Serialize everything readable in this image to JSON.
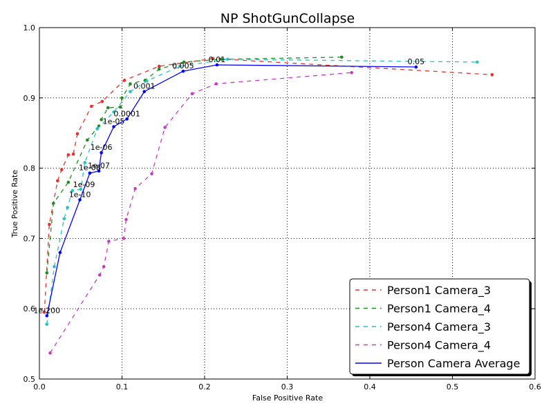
{
  "chart_data": {
    "type": "line",
    "title": "NP ShotGunCollapse",
    "xlabel": "False Positive Rate",
    "ylabel": "True Positive Rate",
    "xlim": [
      0.0,
      0.6
    ],
    "ylim": [
      0.5,
      1.0
    ],
    "x_ticks": [
      0.0,
      0.1,
      0.2,
      0.3,
      0.4,
      0.5,
      0.6
    ],
    "y_ticks": [
      0.5,
      0.6,
      0.7,
      0.8,
      0.9,
      1.0
    ],
    "x_tick_labels": [
      "0.0",
      "0.1",
      "0.2",
      "0.3",
      "0.4",
      "0.5",
      "0.6"
    ],
    "y_tick_labels": [
      "0.5",
      "0.6",
      "0.7",
      "0.8",
      "0.9",
      "1.0"
    ],
    "grid": true,
    "legend_position": "bottom-right",
    "series": [
      {
        "name": "Person1 Camera_3",
        "color": "#e8302b",
        "style": "dashed",
        "x": [
          0.006,
          0.012,
          0.022,
          0.027,
          0.035,
          0.041,
          0.046,
          0.063,
          0.076,
          0.103,
          0.145,
          0.21,
          0.548
        ],
        "y": [
          0.595,
          0.72,
          0.782,
          0.798,
          0.819,
          0.82,
          0.849,
          0.888,
          0.895,
          0.925,
          0.945,
          0.956,
          0.933
        ]
      },
      {
        "name": "Person1 Camera_4",
        "color": "#1e8c1e",
        "style": "dashed",
        "x": [
          0.009,
          0.017,
          0.035,
          0.058,
          0.072,
          0.075,
          0.083,
          0.098,
          0.1,
          0.11,
          0.128,
          0.145,
          0.175,
          0.22,
          0.366
        ],
        "y": [
          0.651,
          0.75,
          0.78,
          0.84,
          0.86,
          0.869,
          0.886,
          0.887,
          0.9,
          0.92,
          0.925,
          0.941,
          0.951,
          0.955,
          0.958
        ]
      },
      {
        "name": "Person4 Camera_3",
        "color": "#22c3c3",
        "style": "dashed",
        "x": [
          0.009,
          0.018,
          0.03,
          0.034,
          0.04,
          0.05,
          0.055,
          0.07,
          0.09,
          0.11,
          0.13,
          0.17,
          0.228,
          0.53
        ],
        "y": [
          0.578,
          0.66,
          0.728,
          0.744,
          0.768,
          0.77,
          0.808,
          0.856,
          0.88,
          0.909,
          0.924,
          0.945,
          0.955,
          0.951
        ]
      },
      {
        "name": "Person4 Camera_4",
        "color": "#c43cc4",
        "style": "dashed",
        "x": [
          0.013,
          0.073,
          0.078,
          0.084,
          0.102,
          0.105,
          0.116,
          0.136,
          0.152,
          0.185,
          0.214,
          0.378
        ],
        "y": [
          0.537,
          0.648,
          0.66,
          0.696,
          0.7,
          0.727,
          0.771,
          0.792,
          0.858,
          0.906,
          0.92,
          0.936
        ]
      },
      {
        "name": "Person Camera Average",
        "color": "#0000ff",
        "style": "solid",
        "x": [
          0.009,
          0.025,
          0.049,
          0.061,
          0.072,
          0.075,
          0.09,
          0.106,
          0.127,
          0.174,
          0.215,
          0.456
        ],
        "y": [
          0.59,
          0.68,
          0.755,
          0.793,
          0.796,
          0.822,
          0.859,
          0.87,
          0.909,
          0.938,
          0.947,
          0.944
        ]
      }
    ],
    "annotations": [
      {
        "text": "1e-200",
        "x": 0.009,
        "y": 0.59
      },
      {
        "text": "1e-10",
        "x": 0.049,
        "y": 0.755
      },
      {
        "text": "1e-09",
        "x": 0.054,
        "y": 0.769
      },
      {
        "text": "1e-08",
        "x": 0.061,
        "y": 0.793
      },
      {
        "text": "1e-07",
        "x": 0.072,
        "y": 0.796
      },
      {
        "text": "1e-06",
        "x": 0.075,
        "y": 0.822
      },
      {
        "text": "1e-05",
        "x": 0.09,
        "y": 0.859
      },
      {
        "text": "0.0001",
        "x": 0.106,
        "y": 0.87
      },
      {
        "text": "0.001",
        "x": 0.127,
        "y": 0.909
      },
      {
        "text": "0.005",
        "x": 0.174,
        "y": 0.938
      },
      {
        "text": "0.01",
        "x": 0.215,
        "y": 0.947
      },
      {
        "text": "0.05",
        "x": 0.456,
        "y": 0.944
      }
    ]
  }
}
